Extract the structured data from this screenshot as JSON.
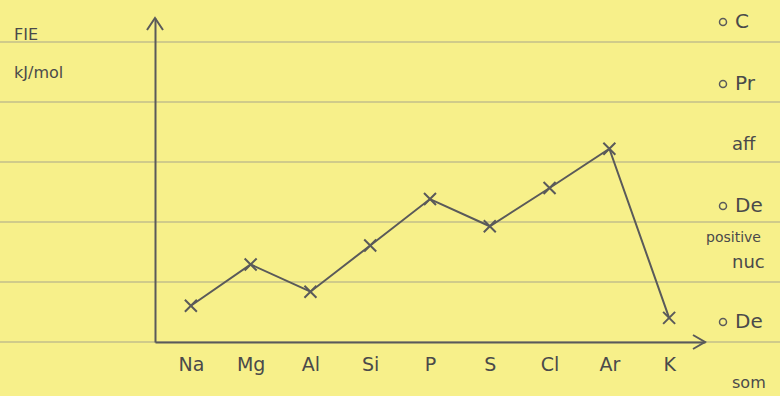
{
  "chart_data": {
    "type": "line",
    "ylabel": [
      "FIE",
      "kJ/mol"
    ],
    "categories": [
      "Na",
      "Mg",
      "Al",
      "Si",
      "P",
      "S",
      "Cl",
      "Ar",
      "K"
    ],
    "values": [
      285,
      610,
      396,
      760,
      1125,
      911,
      1212,
      1521,
      190
    ],
    "ylim": [
      0,
      2550
    ],
    "tick_labels": "x",
    "marker": "x",
    "color": "#5a5a5a",
    "annotations": [
      "C",
      "Pr",
      "aff",
      "De",
      "positive",
      "nuc",
      "De",
      "som"
    ]
  }
}
